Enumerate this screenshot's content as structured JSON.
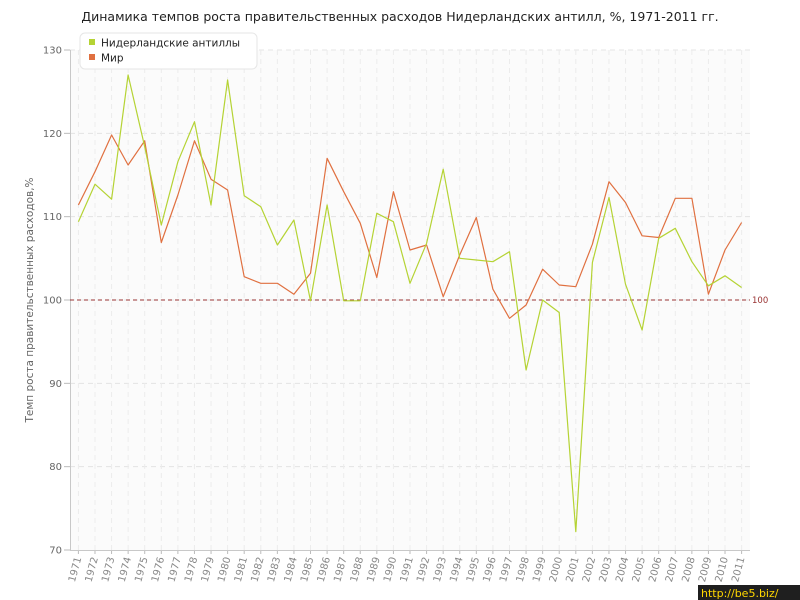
{
  "chart_data": {
    "type": "line",
    "title": "Динамика темпов роста правительственных расходов Нидерландских антилл, %, 1971-2011 гг.",
    "ylabel": "Темп роста правительственных расходов,%",
    "xlabel": "",
    "ylim": [
      70,
      130
    ],
    "yticks": [
      70,
      80,
      90,
      100,
      110,
      120,
      130
    ],
    "grid": true,
    "legend_position": "top-left",
    "categories": [
      "1971",
      "1972",
      "1973",
      "1974",
      "1975",
      "1976",
      "1977",
      "1978",
      "1979",
      "1980",
      "1981",
      "1982",
      "1983",
      "1984",
      "1985",
      "1986",
      "1987",
      "1988",
      "1989",
      "1990",
      "1991",
      "1992",
      "1993",
      "1994",
      "1995",
      "1996",
      "1997",
      "1998",
      "1999",
      "2000",
      "2001",
      "2002",
      "2003",
      "2004",
      "2005",
      "2006",
      "2007",
      "2008",
      "2009",
      "2010",
      "2011"
    ],
    "series": [
      {
        "name": "Нидерландские антиллы",
        "color": "#b5d334",
        "values": [
          109.4,
          113.9,
          112.1,
          127.0,
          118.4,
          109.0,
          116.6,
          121.4,
          111.4,
          126.4,
          112.5,
          111.2,
          106.6,
          109.6,
          99.9,
          111.4,
          99.9,
          99.9,
          110.4,
          109.4,
          102.0,
          106.8,
          115.7,
          105.0,
          104.8,
          104.6,
          105.8,
          91.6,
          100.0,
          98.5,
          72.2,
          104.5,
          112.3,
          101.9,
          96.4,
          107.4,
          108.6,
          104.6,
          101.7,
          102.9,
          101.5
        ]
      },
      {
        "name": "Мир",
        "color": "#e07040",
        "values": [
          111.4,
          115.4,
          119.8,
          116.2,
          119.1,
          106.9,
          112.6,
          119.1,
          114.5,
          113.2,
          102.8,
          102.0,
          102.0,
          100.7,
          103.2,
          117.0,
          113.0,
          109.2,
          102.7,
          113.0,
          106.0,
          106.6,
          100.4,
          105.4,
          109.9,
          101.3,
          97.8,
          99.4,
          103.7,
          101.8,
          101.6,
          106.7,
          114.2,
          111.7,
          107.7,
          107.5,
          112.2,
          112.2,
          100.7,
          106.0,
          109.3
        ]
      }
    ],
    "reference_line": {
      "value": 100,
      "label": "100",
      "color": "#993333"
    }
  },
  "watermark": "http://be5.biz/"
}
